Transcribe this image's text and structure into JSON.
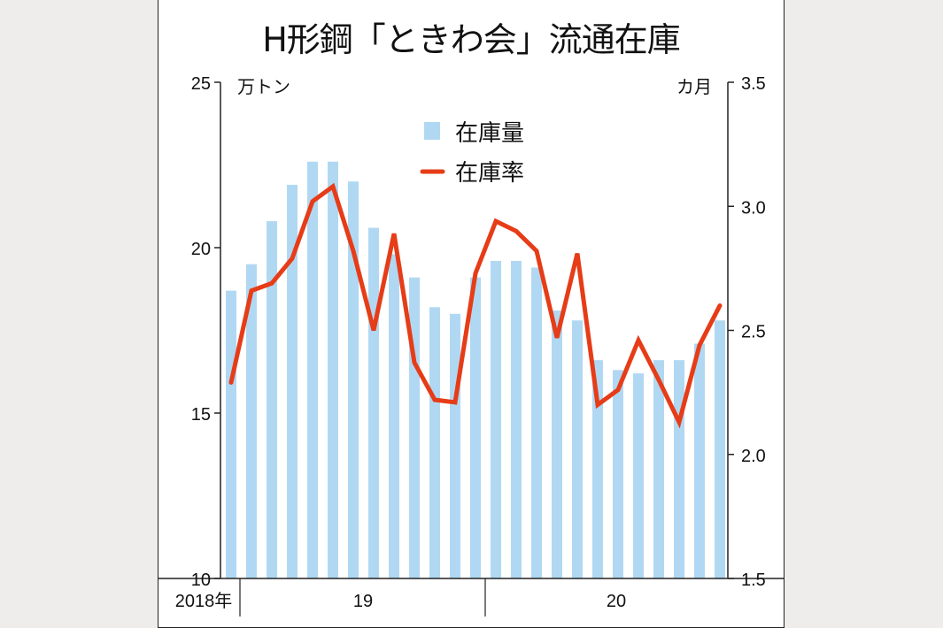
{
  "chart_data": {
    "type": "bar+line",
    "title": "H形鋼「ときわ会」流通在庫",
    "left_axis": {
      "unit": "万トン",
      "ylim": [
        10,
        25
      ],
      "ticks": [
        "10",
        "15",
        "20",
        "25"
      ]
    },
    "right_axis": {
      "unit": "カ月",
      "ylim": [
        1.5,
        3.5
      ],
      "ticks": [
        "1.5",
        "2.0",
        "2.5",
        "3.0",
        "3.5"
      ]
    },
    "x_labels": [
      "2018年",
      "19",
      "20"
    ],
    "legend_placement": "top-center",
    "colors": {
      "bar": "#b1d8f2",
      "line": "#e63c17"
    },
    "series": [
      {
        "name": "在庫量",
        "type": "bar",
        "axis": "left",
        "values": [
          18.7,
          19.5,
          20.8,
          21.9,
          22.6,
          22.6,
          22.0,
          20.6,
          19.8,
          19.1,
          18.2,
          18.0,
          19.1,
          19.6,
          19.6,
          19.4,
          18.1,
          17.8,
          16.6,
          16.3,
          16.2,
          16.6,
          16.6,
          17.1,
          17.8
        ]
      },
      {
        "name": "在庫率",
        "type": "line",
        "axis": "right",
        "values": [
          2.29,
          2.66,
          2.69,
          2.79,
          3.02,
          3.08,
          2.82,
          2.5,
          2.89,
          2.37,
          2.22,
          2.21,
          2.73,
          2.94,
          2.9,
          2.82,
          2.47,
          2.81,
          2.2,
          2.26,
          2.46,
          2.3,
          2.13,
          2.44,
          2.6
        ]
      }
    ]
  }
}
